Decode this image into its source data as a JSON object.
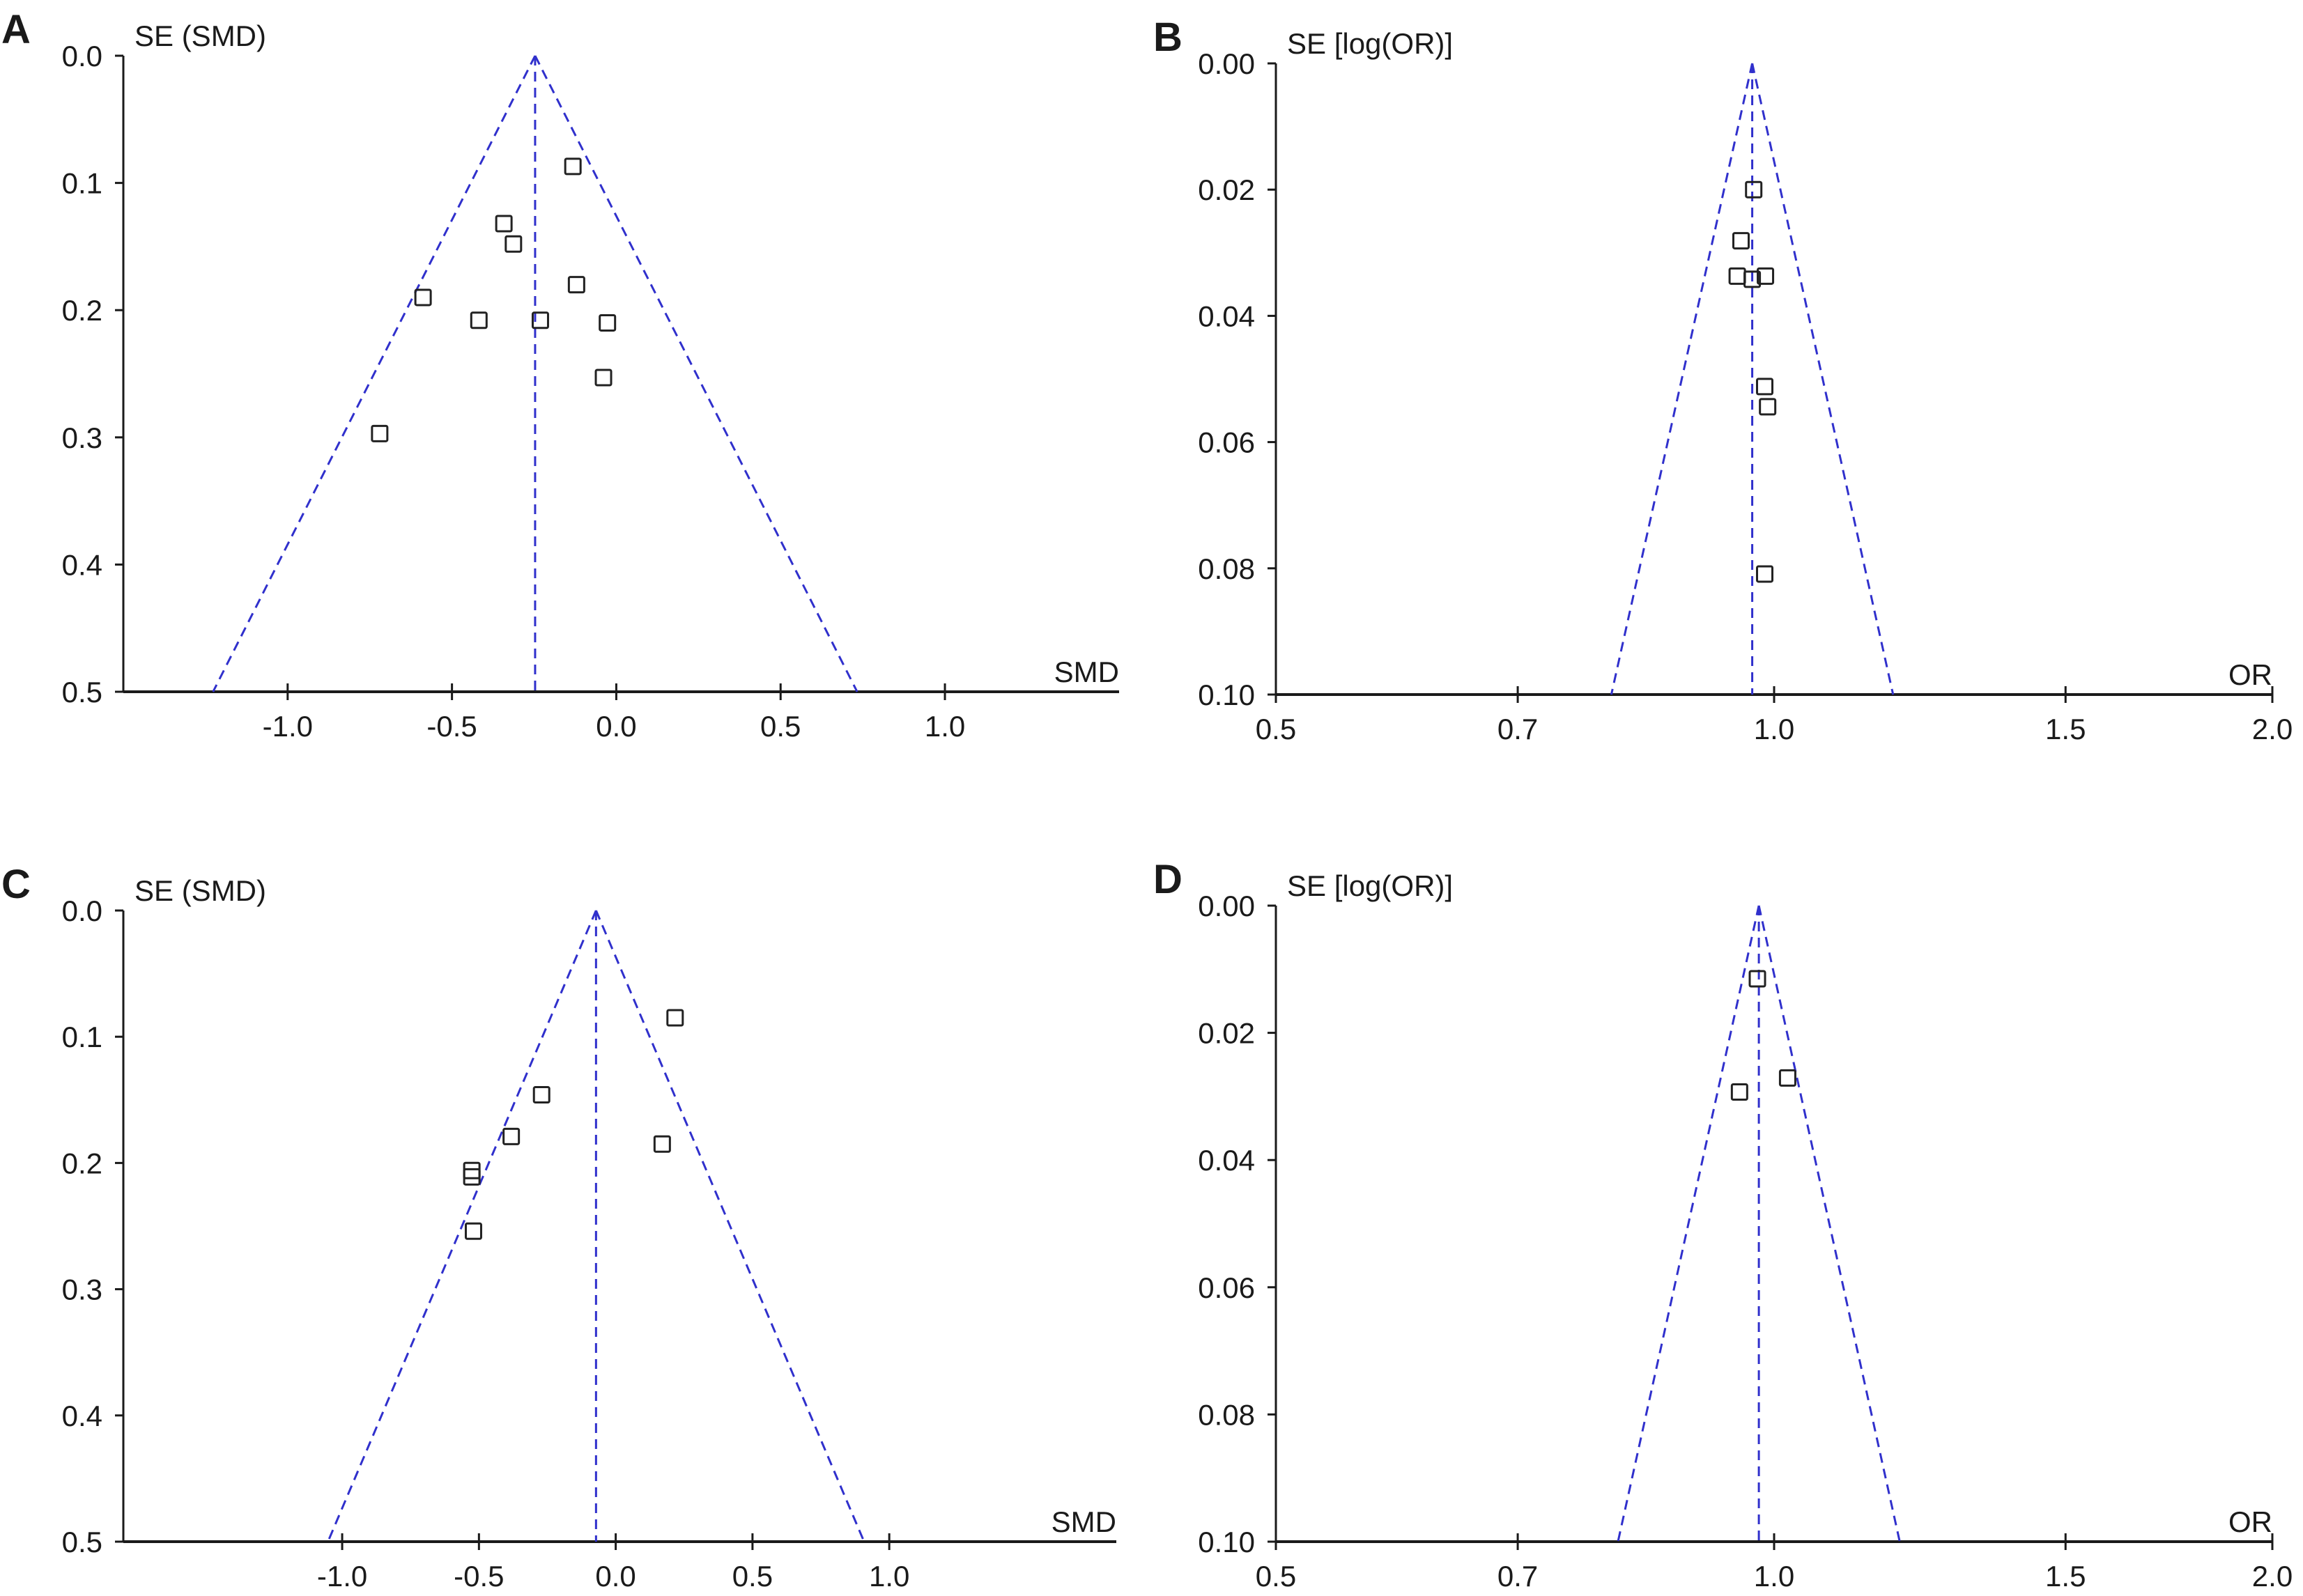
{
  "chart_data": [
    {
      "panel": "A",
      "type": "scatter",
      "plot_kind": "funnel",
      "xlabel": "SMD",
      "ylabel": "SE (SMD)",
      "xscale": "linear",
      "xlim": [
        -1.5,
        1.53
      ],
      "ylim": [
        0,
        0.5
      ],
      "y_inverted": true,
      "grid": false,
      "xticks": [
        -1.0,
        -0.5,
        0.0,
        0.5,
        1.0
      ],
      "xtick_labels": [
        "-1.0",
        "-0.5",
        "0.0",
        "0.5",
        "1.0"
      ],
      "yticks": [
        0.0,
        0.1,
        0.2,
        0.3,
        0.4,
        0.5
      ],
      "ytick_labels": [
        "0.0",
        "0.1",
        "0.2",
        "0.3",
        "0.4",
        "0.5"
      ],
      "pooled_estimate": -0.247,
      "marker": "open-square",
      "funnel_color": "#3030cc",
      "marker_color": "#222222",
      "points": [
        {
          "x": -0.132,
          "y": 0.087
        },
        {
          "x": -0.342,
          "y": 0.132
        },
        {
          "x": -0.313,
          "y": 0.148
        },
        {
          "x": -0.121,
          "y": 0.18
        },
        {
          "x": -0.588,
          "y": 0.19
        },
        {
          "x": -0.418,
          "y": 0.208
        },
        {
          "x": -0.231,
          "y": 0.208
        },
        {
          "x": -0.027,
          "y": 0.21
        },
        {
          "x": -0.039,
          "y": 0.253
        },
        {
          "x": -0.72,
          "y": 0.297
        }
      ]
    },
    {
      "panel": "B",
      "type": "scatter",
      "plot_kind": "funnel",
      "xlabel": "OR",
      "ylabel": "SE [log(OR)]",
      "xscale": "log",
      "xlim": [
        0.5,
        2.0
      ],
      "ylim": [
        0,
        0.1
      ],
      "y_inverted": true,
      "grid": false,
      "xticks": [
        0.5,
        0.7,
        1.0,
        1.5,
        2.0
      ],
      "xtick_labels": [
        "0.5",
        "0.7",
        "1.0",
        "1.5",
        "2.0"
      ],
      "yticks": [
        0.0,
        0.02,
        0.04,
        0.06,
        0.08,
        0.1
      ],
      "ytick_labels": [
        "0.00",
        "0.02",
        "0.04",
        "0.06",
        "0.08",
        "0.10"
      ],
      "pooled_estimate": 0.97,
      "marker": "open-square",
      "funnel_color": "#3030cc",
      "marker_color": "#222222",
      "points": [
        {
          "x": 0.972,
          "y": 0.02
        },
        {
          "x": 0.955,
          "y": 0.0281
        },
        {
          "x": 0.95,
          "y": 0.0337
        },
        {
          "x": 0.97,
          "y": 0.0342
        },
        {
          "x": 0.988,
          "y": 0.0337
        },
        {
          "x": 0.987,
          "y": 0.0512
        },
        {
          "x": 0.991,
          "y": 0.0544
        },
        {
          "x": 0.987,
          "y": 0.0809
        }
      ]
    },
    {
      "panel": "C",
      "type": "scatter",
      "plot_kind": "funnel",
      "xlabel": "SMD",
      "ylabel": "SE (SMD)",
      "xscale": "linear",
      "xlim": [
        -1.8,
        1.83
      ],
      "ylim": [
        0,
        0.5
      ],
      "y_inverted": true,
      "grid": false,
      "xticks": [
        -1.0,
        -0.5,
        0.0,
        0.5,
        1.0
      ],
      "xtick_labels": [
        "-1.0",
        "-0.5",
        "0.0",
        "0.5",
        "1.0"
      ],
      "yticks": [
        0.0,
        0.1,
        0.2,
        0.3,
        0.4,
        0.5
      ],
      "ytick_labels": [
        "0.0",
        "0.1",
        "0.2",
        "0.3",
        "0.4",
        "0.5"
      ],
      "pooled_estimate": -0.072,
      "marker": "open-square",
      "funnel_color": "#3030cc",
      "marker_color": "#222222",
      "points": [
        {
          "x": 0.217,
          "y": 0.085
        },
        {
          "x": -0.271,
          "y": 0.146
        },
        {
          "x": -0.382,
          "y": 0.179
        },
        {
          "x": 0.17,
          "y": 0.185
        },
        {
          "x": -0.526,
          "y": 0.206
        },
        {
          "x": -0.526,
          "y": 0.211
        },
        {
          "x": -0.52,
          "y": 0.254
        }
      ]
    },
    {
      "panel": "D",
      "type": "scatter",
      "plot_kind": "funnel",
      "xlabel": "OR",
      "ylabel": "SE [log(OR)]",
      "xscale": "log",
      "xlim": [
        0.5,
        2.0
      ],
      "ylim": [
        0,
        0.1
      ],
      "y_inverted": true,
      "grid": false,
      "xticks": [
        0.5,
        0.7,
        1.0,
        1.5,
        2.0
      ],
      "xtick_labels": [
        "0.5",
        "0.7",
        "1.0",
        "1.5",
        "2.0"
      ],
      "yticks": [
        0.0,
        0.02,
        0.04,
        0.06,
        0.08,
        0.1
      ],
      "ytick_labels": [
        "0.00",
        "0.02",
        "0.04",
        "0.06",
        "0.08",
        "0.10"
      ],
      "pooled_estimate": 0.979,
      "marker": "open-square",
      "funnel_color": "#3030cc",
      "marker_color": "#222222",
      "points": [
        {
          "x": 0.977,
          "y": 0.0115
        },
        {
          "x": 0.953,
          "y": 0.0293
        },
        {
          "x": 1.019,
          "y": 0.0271
        }
      ]
    }
  ]
}
